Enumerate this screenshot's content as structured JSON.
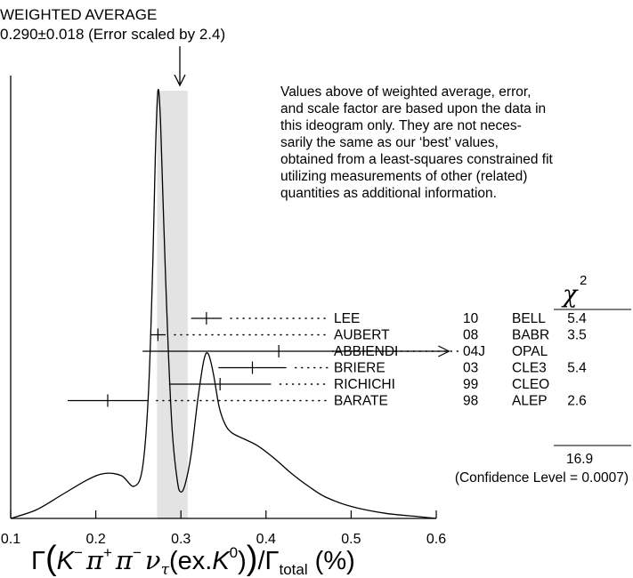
{
  "chart_data": {
    "type": "scatter",
    "title_line1": "WEIGHTED AVERAGE",
    "title_line2": "0.290±0.018 (Error scaled by 2.4)",
    "note_lines": [
      "Values above of weighted average, error,",
      "and scale factor are based upon the data in",
      "this ideogram only.  They are not neces-",
      "sarily the same as our ‘best’ values,",
      "obtained from a least-squares constrained fit",
      "utilizing measurements of other (related)",
      "quantities as additional information."
    ],
    "xlim": [
      0.1,
      0.6
    ],
    "x_ticks": [
      0.1,
      0.2,
      0.3,
      0.4,
      0.5,
      0.6
    ],
    "x_tick_labels": [
      "0.1",
      "0.2",
      "0.3",
      "0.4",
      "0.5",
      "0.6"
    ],
    "xlabel": "Γ(K⁻π⁺π⁻ντ(ex.K⁰))/Γtotal (%)",
    "weighted_average": {
      "value": 0.29,
      "error": 0.018,
      "scale_factor": 2.4
    },
    "chi2_header": "χ2",
    "chi2_total": "16.9",
    "confidence_level": "(Confidence Level = 0.0007)",
    "measurements": [
      {
        "name": "LEE",
        "year": "10",
        "experiment": "BELL",
        "value": 0.33,
        "err_low": 0.018,
        "err_high": 0.018,
        "chi2": "5.4",
        "arrow": false
      },
      {
        "name": "AUBERT",
        "year": "08",
        "experiment": "BABR",
        "value": 0.273,
        "err_low": 0.009,
        "err_high": 0.009,
        "chi2": "3.5",
        "arrow": false
      },
      {
        "name": "ABBIENDI",
        "year": "04J",
        "experiment": "OPAL",
        "value": 0.415,
        "err_low": 0.16,
        "err_high": 0.2,
        "chi2": "",
        "arrow": true
      },
      {
        "name": "BRIERE",
        "year": "03",
        "experiment": "CLE3",
        "value": 0.384,
        "err_low": 0.04,
        "err_high": 0.04,
        "chi2": "5.4",
        "arrow": false
      },
      {
        "name": "RICHICHI",
        "year": "99",
        "experiment": "CLEO",
        "value": 0.346,
        "err_low": 0.06,
        "err_high": 0.06,
        "chi2": "",
        "arrow": false
      },
      {
        "name": "BARATE",
        "year": "98",
        "experiment": "ALEP",
        "value": 0.214,
        "err_low": 0.047,
        "err_high": 0.047,
        "chi2": "2.6",
        "arrow": false
      }
    ],
    "ideogram": [
      [
        0.1,
        0.0
      ],
      [
        0.13,
        0.02
      ],
      [
        0.16,
        0.055
      ],
      [
        0.19,
        0.09
      ],
      [
        0.21,
        0.105
      ],
      [
        0.23,
        0.1
      ],
      [
        0.245,
        0.075
      ],
      [
        0.255,
        0.12
      ],
      [
        0.262,
        0.3
      ],
      [
        0.267,
        0.6
      ],
      [
        0.27,
        0.85
      ],
      [
        0.273,
        1.0
      ],
      [
        0.276,
        0.93
      ],
      [
        0.28,
        0.68
      ],
      [
        0.285,
        0.4
      ],
      [
        0.29,
        0.2
      ],
      [
        0.296,
        0.085
      ],
      [
        0.3,
        0.062
      ],
      [
        0.305,
        0.08
      ],
      [
        0.312,
        0.15
      ],
      [
        0.32,
        0.28
      ],
      [
        0.327,
        0.37
      ],
      [
        0.332,
        0.385
      ],
      [
        0.338,
        0.34
      ],
      [
        0.345,
        0.26
      ],
      [
        0.352,
        0.22
      ],
      [
        0.36,
        0.2
      ],
      [
        0.375,
        0.185
      ],
      [
        0.39,
        0.17
      ],
      [
        0.41,
        0.14
      ],
      [
        0.43,
        0.105
      ],
      [
        0.45,
        0.075
      ],
      [
        0.47,
        0.05
      ],
      [
        0.5,
        0.028
      ],
      [
        0.54,
        0.012
      ],
      [
        0.58,
        0.004
      ],
      [
        0.6,
        0.0
      ]
    ]
  }
}
